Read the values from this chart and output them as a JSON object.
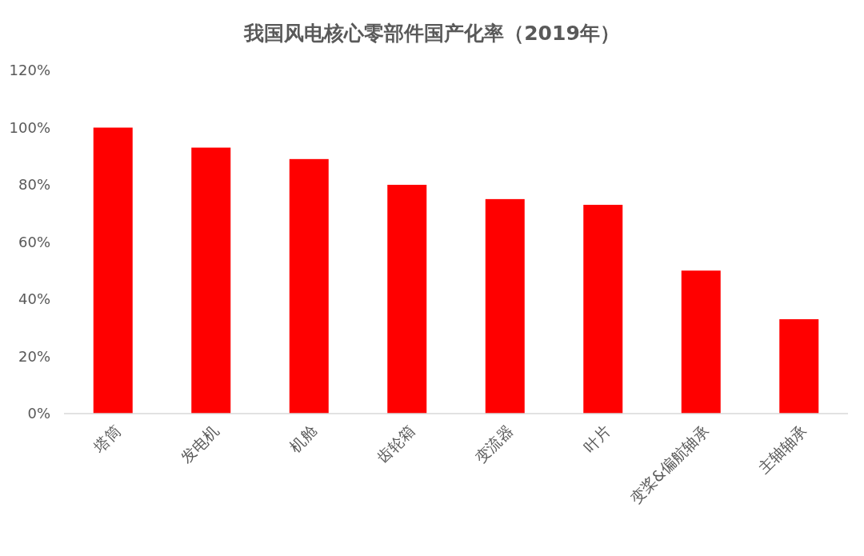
{
  "chart_data": {
    "type": "bar",
    "title": "我国风电核心零部件国产化率（2019年）",
    "categories": [
      "塔筒",
      "发电机",
      "机舱",
      "齿轮箱",
      "变流器",
      "叶片",
      "变桨&偏航轴承",
      "主轴轴承"
    ],
    "values": [
      100,
      93,
      89,
      80,
      75,
      73,
      50,
      33
    ],
    "color": "#ff0000",
    "ylim": [
      0,
      120
    ],
    "yticks": [
      {
        "value": 0,
        "label": "0%"
      },
      {
        "value": 20,
        "label": "20%"
      },
      {
        "value": 40,
        "label": "40%"
      },
      {
        "value": 60,
        "label": "60%"
      },
      {
        "value": 80,
        "label": "80%"
      },
      {
        "value": 100,
        "label": "100%"
      },
      {
        "value": 120,
        "label": "120%"
      }
    ],
    "grid": false
  }
}
